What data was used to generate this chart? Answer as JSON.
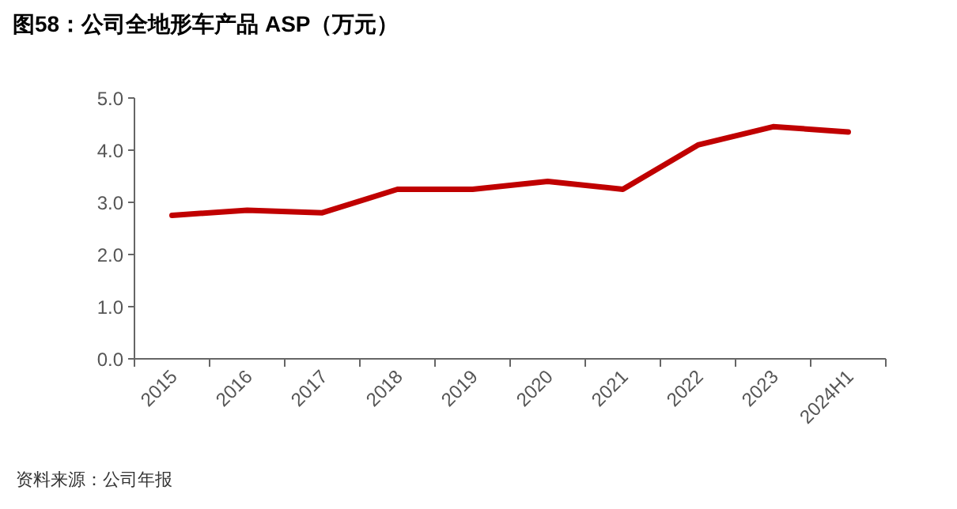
{
  "chart_data": {
    "type": "line",
    "title": "图58：公司全地形车产品 ASP（万元）",
    "categories": [
      "2015",
      "2016",
      "2017",
      "2018",
      "2019",
      "2020",
      "2021",
      "2022",
      "2023",
      "2024H1"
    ],
    "series": [
      {
        "color": "#c00000",
        "values": [
          2.75,
          2.85,
          2.8,
          3.25,
          3.25,
          3.4,
          3.25,
          4.1,
          4.45,
          4.35
        ]
      }
    ],
    "ylim": [
      0,
      5
    ],
    "yticks": [
      {
        "value": 0,
        "label": "0.0"
      },
      {
        "value": 1,
        "label": "1.0"
      },
      {
        "value": 2,
        "label": "2.0"
      },
      {
        "value": 3,
        "label": "3.0"
      },
      {
        "value": 4,
        "label": "4.0"
      },
      {
        "value": 5,
        "label": "5.0"
      }
    ],
    "grid": false,
    "marker": "none",
    "annotations": [
      "资料来源：公司年报"
    ]
  }
}
